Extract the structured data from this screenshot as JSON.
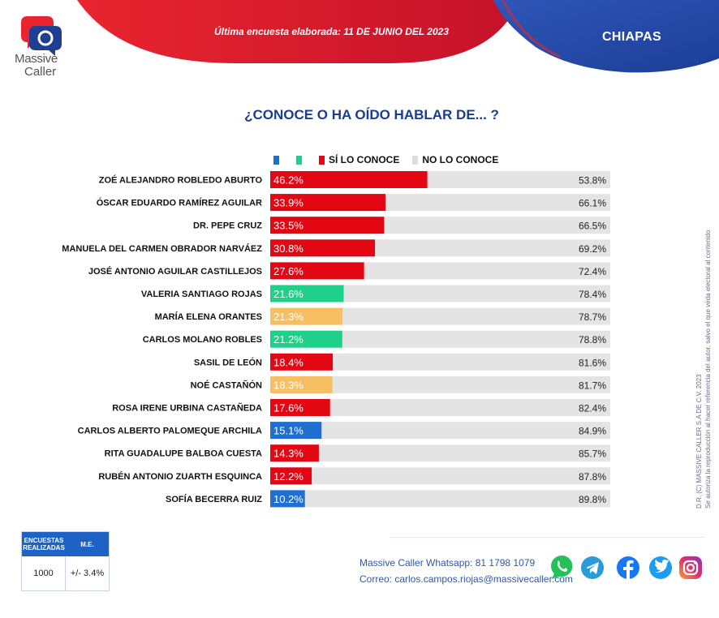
{
  "brand": {
    "line1": "Massive",
    "line2": "Caller"
  },
  "header": {
    "survey_date": "Última encuesta elaborada:  11 DE JUNIO DEL 2023",
    "region": "CHIAPAS"
  },
  "colors": {
    "red": "#e30613",
    "green": "#1fd08a",
    "orange": "#f6bf62",
    "blue": "#1f6fd1",
    "gray": "#e4e4e4",
    "navy": "#1a3d8f"
  },
  "chart_data": {
    "type": "bar",
    "orientation": "horizontal",
    "stacked": true,
    "title": "¿CONOCE O HA OÍDO HABLAR DE... ?",
    "legend": [
      {
        "label": "",
        "color": "#1f6fd1"
      },
      {
        "label": "",
        "color": "#1fd08a"
      },
      {
        "label": "SÍ LO CONOCE",
        "color": "#e30613"
      },
      {
        "label": "NO LO CONOCE",
        "color": "#e4e4e4"
      }
    ],
    "xlim": [
      0,
      100
    ],
    "categories": [
      "ZOÉ ALEJANDRO ROBLEDO ABURTO",
      "ÓSCAR EDUARDO RAMÍREZ AGUILAR",
      "DR. PEPE CRUZ",
      "MANUELA DEL CARMEN OBRADOR NARVÁEZ",
      "JOSÉ ANTONIO AGUILAR CASTILLEJOS",
      "VALERIA SANTIAGO ROJAS",
      "MARÍA ELENA ORANTES",
      "CARLOS MOLANO ROBLES",
      "SASIL DE LEÓN",
      "NOÉ CASTAÑÓN",
      "ROSA IRENE URBINA CASTAÑEDA",
      "CARLOS ALBERTO PALOMEQUE ARCHILA",
      "RITA GUADALUPE BALBOA CUESTA",
      "RUBÉN ANTONIO ZUARTH ESQUINCA",
      "SOFÍA BECERRA RUIZ"
    ],
    "bar_colors": [
      "#e30613",
      "#e30613",
      "#e30613",
      "#e30613",
      "#e30613",
      "#1fd08a",
      "#f6bf62",
      "#1fd08a",
      "#e30613",
      "#f6bf62",
      "#e30613",
      "#1f6fd1",
      "#e30613",
      "#e30613",
      "#1f6fd1"
    ],
    "series": [
      {
        "name": "SÍ LO CONOCE",
        "values": [
          46.2,
          33.9,
          33.5,
          30.8,
          27.6,
          21.6,
          21.3,
          21.2,
          18.4,
          18.3,
          17.6,
          15.1,
          14.3,
          12.2,
          10.2
        ]
      },
      {
        "name": "NO LO CONOCE",
        "values": [
          53.8,
          66.1,
          66.5,
          69.2,
          72.4,
          78.4,
          78.7,
          78.8,
          81.6,
          81.7,
          82.4,
          84.9,
          85.7,
          87.8,
          89.8
        ]
      }
    ]
  },
  "stats": {
    "col1_header": "ENCUESTAS REALIZADAS",
    "col2_header": "M.E.",
    "surveys": "1000",
    "margin": "+/- 3.4%"
  },
  "contact": {
    "whatsapp": "Massive Caller Whatsapp: 81 1798 1079",
    "email": "Correo: carlos.campos.riojas@massivecaller.com"
  },
  "side_note": {
    "line1": "D.R. (C) MASSIVE CALLER S.A DE C.V. 2023",
    "line2": "Se autoriza la reproducción al hacer referencia del autor, salvo el que veda electoral al contenido"
  },
  "social": [
    "whatsapp-icon",
    "telegram-icon",
    "facebook-icon",
    "twitter-icon",
    "instagram-icon"
  ]
}
